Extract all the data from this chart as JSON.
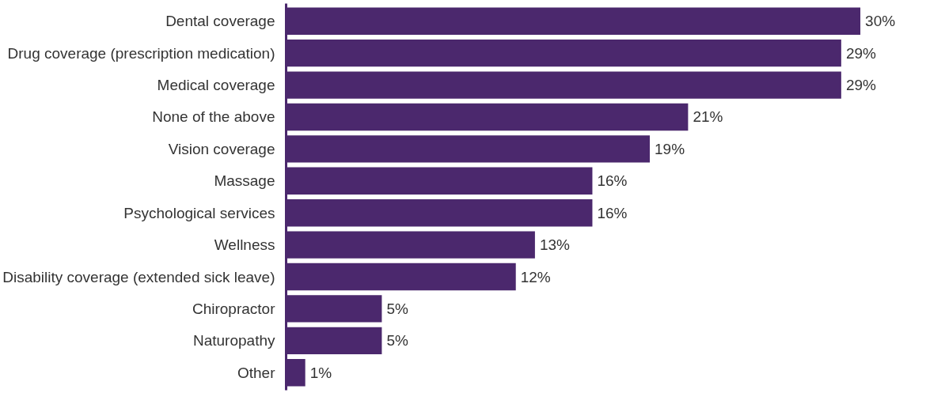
{
  "chart_data": {
    "type": "bar",
    "orientation": "horizontal",
    "categories": [
      "Dental coverage",
      "Drug coverage (prescription medication)",
      "Medical coverage",
      "None of the above",
      "Vision coverage",
      "Massage",
      "Psychological services",
      "Wellness",
      "Disability coverage (extended sick leave)",
      "Chiropractor",
      "Naturopathy",
      "Other"
    ],
    "values": [
      30,
      29,
      29,
      21,
      19,
      16,
      16,
      13,
      12,
      5,
      5,
      1
    ],
    "value_labels": [
      "30%",
      "29%",
      "29%",
      "21%",
      "19%",
      "16%",
      "16%",
      "13%",
      "12%",
      "5%",
      "5%",
      "1%"
    ],
    "color": "#4b286d"
  }
}
